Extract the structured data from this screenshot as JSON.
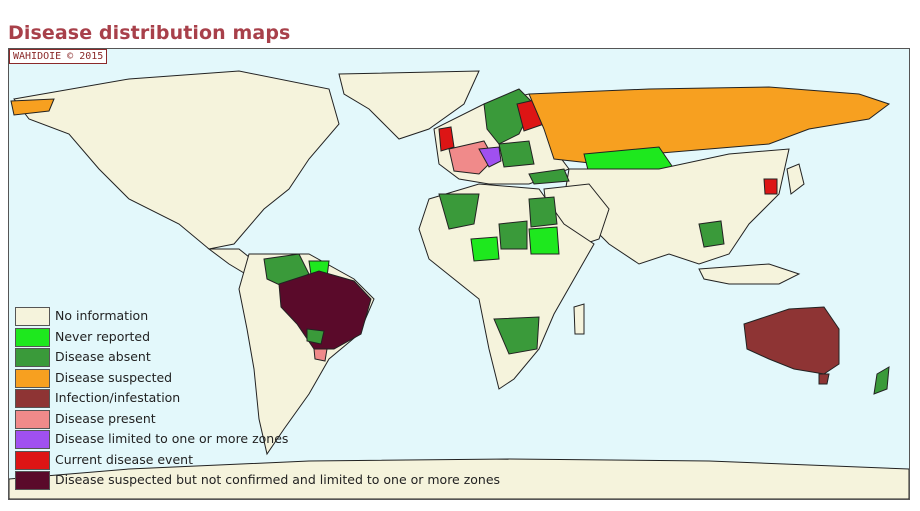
{
  "page": {
    "title": "Disease distribution maps"
  },
  "map": {
    "stamp": "WAHIDOIE © 2015",
    "ocean_color": "#e3f8fb",
    "legend": [
      {
        "label": "No information",
        "color": "#f5f3dc"
      },
      {
        "label": "Never reported",
        "color": "#1ee81e"
      },
      {
        "label": "Disease absent",
        "color": "#3a9a3a"
      },
      {
        "label": "Disease suspected",
        "color": "#f7a020"
      },
      {
        "label": "Infection/infestation",
        "color": "#8e3434"
      },
      {
        "label": "Disease present",
        "color": "#f08a8a"
      },
      {
        "label": "Disease limited to one or more zones",
        "color": "#a050f0"
      },
      {
        "label": "Current disease event",
        "color": "#dd1515"
      },
      {
        "label": "Disease suspected but not confirmed and limited to one or more zones",
        "color": "#5a0a2a"
      }
    ]
  }
}
